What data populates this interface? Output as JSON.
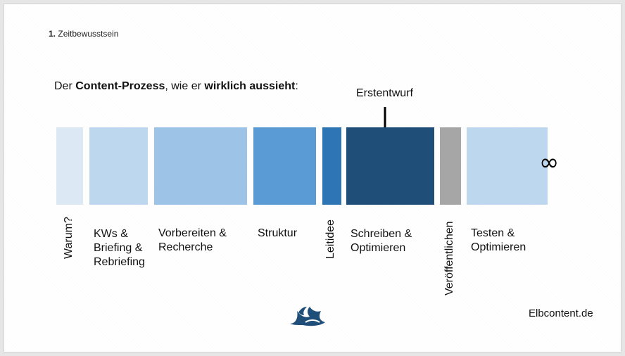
{
  "section": {
    "number": "1.",
    "title": "Zeitbewusstsein"
  },
  "headline": {
    "part1": "Der ",
    "bold1": "Content-Prozess",
    "part2": ", wie er ",
    "bold2": "wirklich aussieht",
    "part3": ":"
  },
  "annotation": {
    "label": "Erstentwurf"
  },
  "infinity": "∞",
  "steps": [
    {
      "label": "Warum?",
      "color": "#dce9f5"
    },
    {
      "label_lines": [
        "KWs &",
        "Briefing &",
        "Rebriefing"
      ],
      "color": "#bdd7ee"
    },
    {
      "label_lines": [
        "Vorbereiten &",
        "Recherche"
      ],
      "color": "#9dc3e6"
    },
    {
      "label": "Struktur",
      "color": "#5b9bd5"
    },
    {
      "label": "Leitidee",
      "color": "#2e75b6"
    },
    {
      "label_lines": [
        "Schreiben &",
        "Optimieren"
      ],
      "color": "#1f4e79"
    },
    {
      "label": "Veröffentlichen",
      "color": "#a6a6a6"
    },
    {
      "label_lines": [
        "Testen &",
        "Optimieren"
      ],
      "color": "#bdd7ee"
    }
  ],
  "footer": {
    "brand": "Elbcontent.de",
    "logo_icon": "wave-logo-icon",
    "logo_color": "#1f4e79"
  }
}
